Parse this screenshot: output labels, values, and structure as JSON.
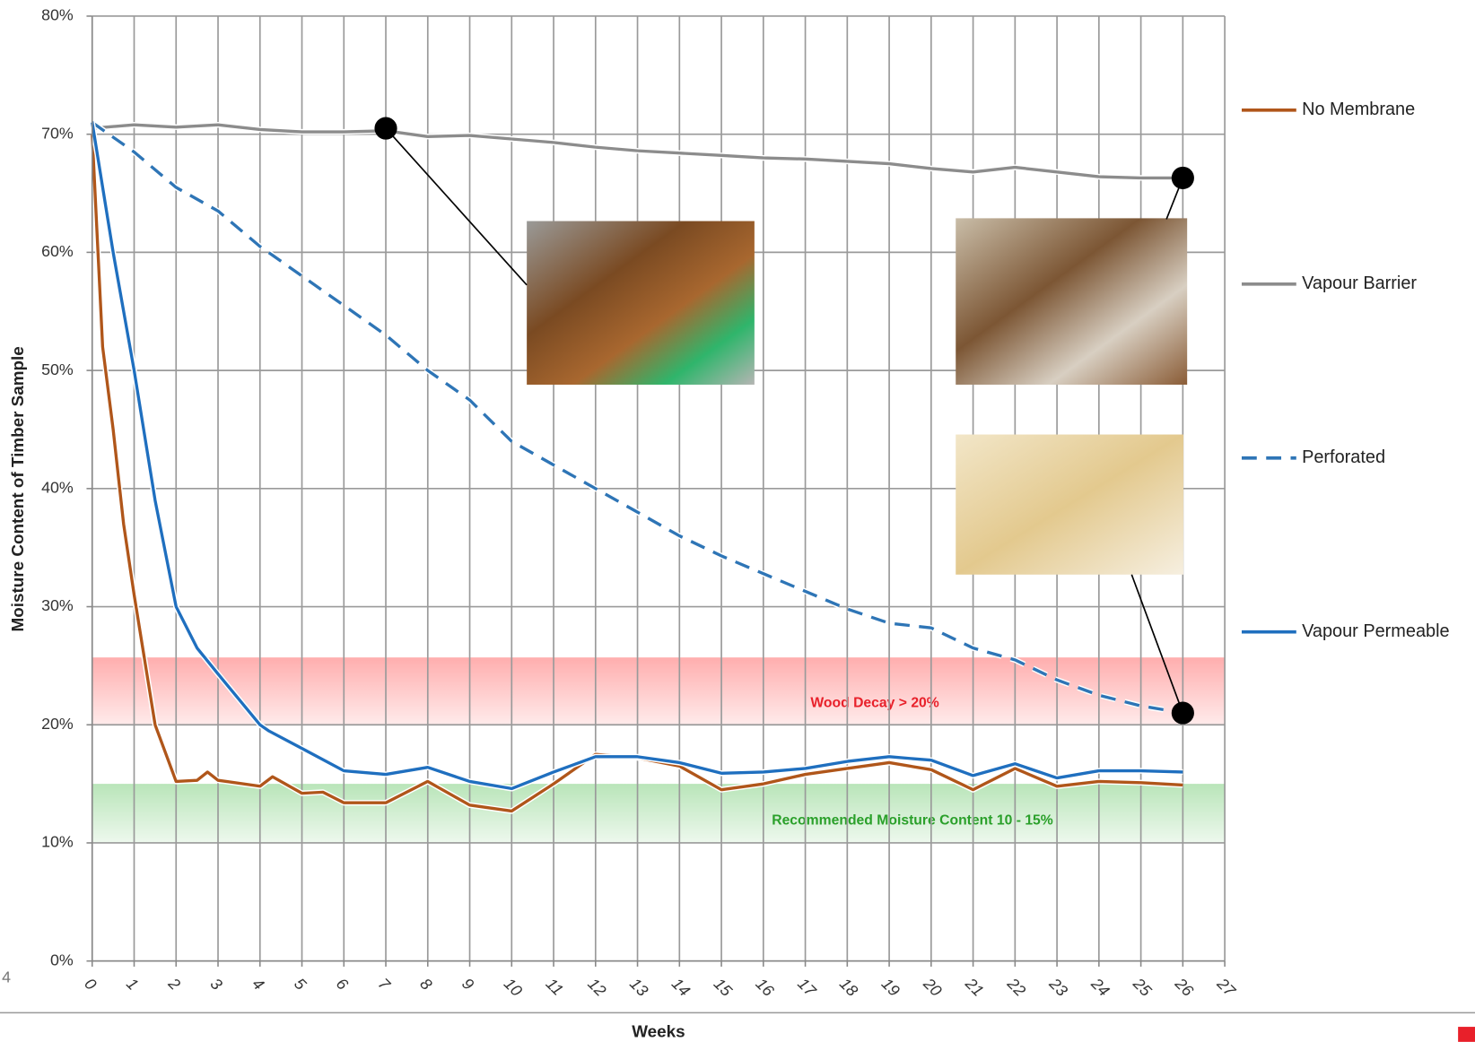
{
  "page_number": "4",
  "chart_data": {
    "type": "line",
    "x_label": "Weeks",
    "y_label": "Moisture Content of Timber Sample",
    "xlim": [
      0,
      27
    ],
    "ylim": [
      0,
      80
    ],
    "xticks": [
      0,
      1,
      2,
      3,
      4,
      5,
      6,
      7,
      8,
      9,
      10,
      11,
      12,
      13,
      14,
      15,
      16,
      17,
      18,
      19,
      20,
      21,
      22,
      23,
      24,
      25,
      26,
      27
    ],
    "yticks": [
      {
        "value": 0,
        "label": "0%"
      },
      {
        "value": 10,
        "label": "10%"
      },
      {
        "value": 20,
        "label": "20%"
      },
      {
        "value": 30,
        "label": "30%"
      },
      {
        "value": 40,
        "label": "40%"
      },
      {
        "value": 50,
        "label": "50%"
      },
      {
        "value": 60,
        "label": "60%"
      },
      {
        "value": 70,
        "label": "70%"
      },
      {
        "value": 80,
        "label": "80%"
      }
    ],
    "grid": true,
    "bands": [
      {
        "label": "Wood Decay > 20%",
        "from": 20,
        "to": 25.7,
        "color": "#ff6b6b",
        "text_color": "#e8202a"
      },
      {
        "label": "Recommended Moisture Content 10 - 15%",
        "from": 10,
        "to": 15,
        "color": "#7fd07f",
        "text_color": "#2aa02a"
      }
    ],
    "series": [
      {
        "name": "No Membrane",
        "color": "#b0561a",
        "dashed": false,
        "x": [
          0,
          0.25,
          0.5,
          0.75,
          1,
          1.5,
          2,
          2.5,
          2.75,
          3,
          4,
          4.3,
          5,
          5.5,
          6,
          7,
          8,
          9,
          10,
          11,
          12,
          13,
          14,
          15,
          16,
          17,
          18,
          19,
          20,
          21,
          22,
          23,
          24,
          25,
          26
        ],
        "values": [
          70,
          52,
          45,
          37,
          31,
          20,
          15.2,
          15.3,
          16,
          15.3,
          14.8,
          15.6,
          14.2,
          14.3,
          13.4,
          13.4,
          15.2,
          13.2,
          12.7,
          15,
          17.5,
          17.2,
          16.5,
          14.5,
          15,
          15.8,
          16.3,
          16.8,
          16.2,
          14.5,
          16.3,
          14.8,
          15.2,
          15.1,
          14.9
        ]
      },
      {
        "name": "Vapour Barrier",
        "color": "#8c8c8c",
        "dashed": false,
        "x": [
          0,
          1,
          2,
          3,
          4,
          5,
          6,
          7,
          8,
          9,
          10,
          11,
          12,
          13,
          14,
          15,
          16,
          17,
          18,
          19,
          20,
          21,
          22,
          23,
          24,
          25,
          26
        ],
        "values": [
          70.5,
          70.8,
          70.6,
          70.8,
          70.4,
          70.2,
          70.2,
          70.3,
          69.8,
          69.9,
          69.6,
          69.3,
          68.9,
          68.6,
          68.4,
          68.2,
          68,
          67.9,
          67.7,
          67.5,
          67.1,
          66.8,
          67.2,
          66.8,
          66.4,
          66.3,
          66.3
        ]
      },
      {
        "name": "Perforated",
        "color": "#2e75b6",
        "dashed": true,
        "x": [
          0,
          1,
          2,
          3,
          4,
          5,
          6,
          7,
          8,
          9,
          10,
          11,
          12,
          13,
          14,
          15,
          16,
          17,
          18,
          19,
          20,
          21,
          22,
          23,
          24,
          25,
          26
        ],
        "values": [
          71,
          68.5,
          65.5,
          63.5,
          60.5,
          58,
          55.5,
          53,
          50,
          47.5,
          44,
          42,
          40,
          38,
          36,
          34.3,
          32.8,
          31.3,
          29.8,
          28.6,
          28.2,
          26.5,
          25.5,
          23.8,
          22.5,
          21.6,
          21
        ]
      },
      {
        "name": "Vapour Permeable",
        "color": "#1f6fbf",
        "dashed": false,
        "x": [
          0,
          0.5,
          1,
          1.5,
          2,
          2.5,
          3,
          4,
          4.2,
          5,
          6,
          7,
          8,
          9,
          10,
          11,
          12,
          13,
          14,
          15,
          16,
          17,
          18,
          19,
          20,
          21,
          22,
          23,
          24,
          25,
          26
        ],
        "values": [
          71,
          60,
          50,
          39,
          30,
          26.5,
          24.3,
          20,
          19.5,
          18,
          16.1,
          15.8,
          16.4,
          15.2,
          14.6,
          16,
          17.3,
          17.3,
          16.8,
          15.9,
          16,
          16.3,
          16.9,
          17.3,
          17,
          15.7,
          16.7,
          15.5,
          16.1,
          16.1,
          16
        ]
      }
    ],
    "callouts": [
      {
        "x": 7,
        "y": 70.5
      },
      {
        "x": 26,
        "y": 66.3
      },
      {
        "x": 26,
        "y": 21
      }
    ]
  }
}
